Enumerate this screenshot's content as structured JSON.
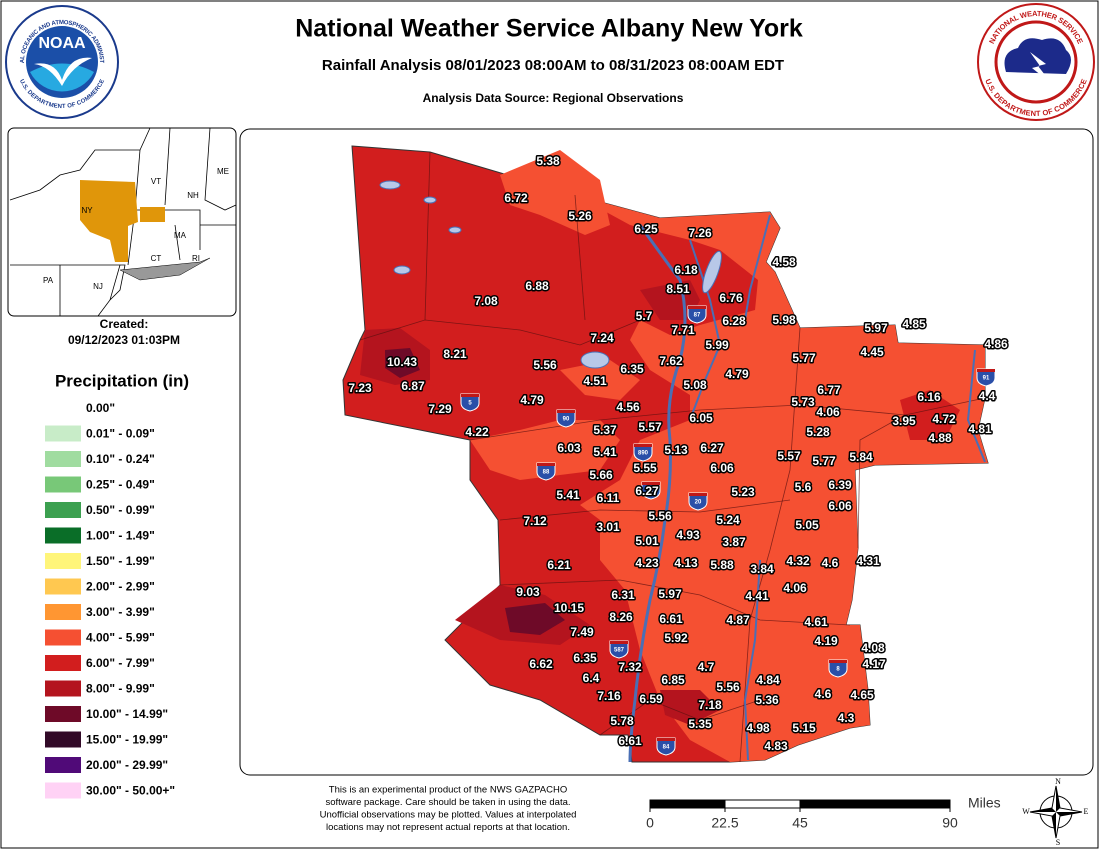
{
  "header": {
    "title": "National Weather Service Albany New York",
    "subtitle": "Rainfall Analysis 08/01/2023 08:00AM to 08/31/2023 08:00AM EDT",
    "source": "Analysis Data Source: Regional Observations"
  },
  "logos": {
    "noaa": "NOAA",
    "noaa_ring": "NATIONAL OCEANIC AND ATMOSPHERIC ADMINISTRATION",
    "noaa_ring_bottom": "U.S. DEPARTMENT OF COMMERCE",
    "nws_ring": "NATIONAL WEATHER SERVICE",
    "nws_ring_bottom": "U.S. DEPARTMENT OF COMMERCE"
  },
  "inset": {
    "labels": [
      "ME",
      "VT",
      "NH",
      "NY",
      "MA",
      "CT",
      "RI",
      "PA",
      "NJ"
    ]
  },
  "created": {
    "label": "Created:",
    "date": "09/12/2023 01:03PM"
  },
  "legend": {
    "title": "Precipitation (in)",
    "items": [
      {
        "label": "0.00\"",
        "color": "#ffffff"
      },
      {
        "label": "0.01\" - 0.09\"",
        "color": "#c8ecc8"
      },
      {
        "label": "0.10\" - 0.24\"",
        "color": "#a0dca0"
      },
      {
        "label": "0.25\" - 0.49\"",
        "color": "#78c878"
      },
      {
        "label": "0.50\" - 0.99\"",
        "color": "#3ca050"
      },
      {
        "label": "1.00\" - 1.49\"",
        "color": "#0a6e28"
      },
      {
        "label": "1.50\" - 1.99\"",
        "color": "#fff57a"
      },
      {
        "label": "2.00\" - 2.99\"",
        "color": "#ffc850"
      },
      {
        "label": "3.00\" - 3.99\"",
        "color": "#ff9632"
      },
      {
        "label": "4.00\" - 5.99\"",
        "color": "#f55032"
      },
      {
        "label": "6.00\" - 7.99\"",
        "color": "#d21e1e"
      },
      {
        "label": "8.00\" - 9.99\"",
        "color": "#b4141e"
      },
      {
        "label": "10.00\" - 14.99\"",
        "color": "#6e0a28"
      },
      {
        "label": "15.00\" - 19.99\"",
        "color": "#320a28"
      },
      {
        "label": "20.00\" - 29.99\"",
        "color": "#500a78"
      },
      {
        "label": "30.00\" - 50.00+\"",
        "color": "#ffd2f5"
      }
    ]
  },
  "stations": {
    "values": [
      5.38,
      6.72,
      5.26,
      6.25,
      7.26,
      4.58,
      6.18,
      8.51,
      6.76,
      7.08,
      6.88,
      5.7,
      7.71,
      6.28,
      5.98,
      5.97,
      4.85,
      4.86,
      10.43,
      8.21,
      7.24,
      5.99,
      4.45,
      5.77,
      5.56,
      6.35,
      7.62,
      4.51,
      5.08,
      4.79,
      7.23,
      6.87,
      6.77,
      6.16,
      4.4,
      7.29,
      4.79,
      4.56,
      5.73,
      4.06,
      3.95,
      4.72,
      4.81,
      4.22,
      5.37,
      5.57,
      6.05,
      5.28,
      4.88,
      6.03,
      5.41,
      5.13,
      6.27,
      5.57,
      5.77,
      5.84,
      5.55,
      5.66,
      6.06,
      6.27,
      6.11,
      5.41,
      5.23,
      5.6,
      6.39,
      6.06,
      7.12,
      5.56,
      5.24,
      3.01,
      5.05,
      5.01,
      4.93,
      3.87,
      4.23,
      4.13,
      5.88,
      3.84,
      4.32,
      4.6,
      4.31,
      6.21,
      4.06,
      4.41,
      9.03,
      6.31,
      5.97,
      10.15,
      8.26,
      6.61,
      4.87,
      4.61,
      7.49,
      5.92,
      4.19,
      4.08,
      6.35,
      7.32,
      4.7,
      4.17,
      6.62,
      6.4,
      6.85,
      4.84,
      5.56,
      7.16,
      6.59,
      5.36,
      4.6,
      4.65,
      7.18,
      5.78,
      5.35,
      4.98,
      5.15,
      4.3,
      6.61,
      4.83
    ]
  },
  "highways": [
    "87",
    "5",
    "90",
    "890",
    "88",
    "787",
    "20",
    "587",
    "84",
    "91",
    "8"
  ],
  "disclaimer": [
    "This is an experimental product of the NWS GAZPACHO",
    "software package. Care should be taken in using the data.",
    "Unofficial observations may be plotted. Values at interpolated",
    "locations may not represent actual reports at that location."
  ],
  "scale": {
    "unit": "Miles",
    "ticks": [
      0,
      22.5,
      45,
      90
    ]
  },
  "compass": [
    "N",
    "E",
    "S",
    "W"
  ]
}
